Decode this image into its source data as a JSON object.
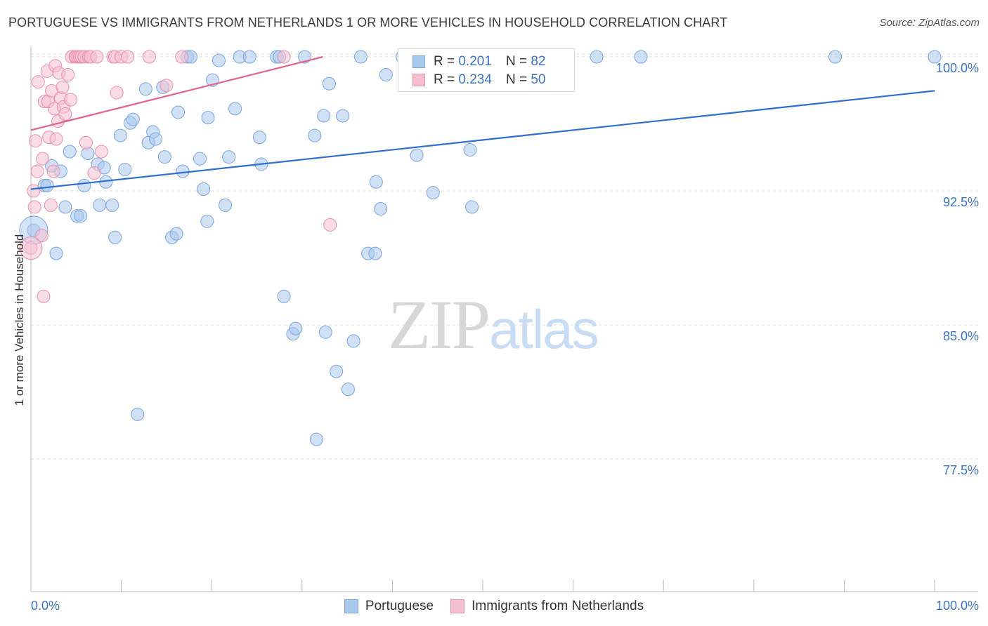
{
  "header": {
    "title": "PORTUGUESE VS IMMIGRANTS FROM NETHERLANDS 1 OR MORE VEHICLES IN HOUSEHOLD CORRELATION CHART",
    "source": "Source: ZipAtlas.com"
  },
  "watermark": {
    "zip": "ZIP",
    "atlas": "atlas"
  },
  "legend": {
    "rows": [
      {
        "r_label": "R =",
        "r_value": "0.201",
        "n_label": "N =",
        "n_value": "82"
      },
      {
        "r_label": "R =",
        "r_value": "0.234",
        "n_label": "N =",
        "n_value": "50"
      }
    ]
  },
  "bottom_legend": [
    "Portuguese",
    "Immigrants from Netherlands"
  ],
  "colors": {
    "blue_fill": "#a9c8ee",
    "blue_stroke": "#7aa4dc",
    "blue_line": "#2f6fcf",
    "pink_fill": "#f6bfd0",
    "pink_stroke": "#e98fab",
    "pink_line": "#e0648e",
    "grid": "#dddddd",
    "tick_text": "#3b73c9"
  },
  "chart_data": {
    "type": "scatter",
    "title": "PORTUGUESE VS IMMIGRANTS FROM NETHERLANDS 1 OR MORE VEHICLES IN HOUSEHOLD CORRELATION CHART",
    "xlabel": "",
    "ylabel": "1 or more Vehicles in Household",
    "xlim": [
      0,
      100
    ],
    "ylim": [
      70.0,
      101.5
    ],
    "x_tick_labels": [
      "0.0%",
      "100.0%"
    ],
    "y_ticks": [
      100.0,
      92.5,
      85.0,
      77.5
    ],
    "y_tick_labels": [
      "100.0%",
      "92.5%",
      "85.0%",
      "77.5%"
    ],
    "grid": true,
    "series": [
      {
        "name": "Portuguese",
        "color": "blue",
        "R": 0.201,
        "N": 82,
        "trend": {
          "x": [
            0,
            100
          ],
          "y": [
            92.6,
            98.1
          ]
        },
        "points": [
          [
            0.3,
            90.3
          ],
          [
            1.5,
            92.8
          ],
          [
            1.8,
            92.8
          ],
          [
            2.3,
            93.9
          ],
          [
            2.8,
            89.0
          ],
          [
            3.3,
            93.6
          ],
          [
            3.8,
            91.6
          ],
          [
            4.3,
            94.7
          ],
          [
            5.1,
            91.1
          ],
          [
            5.5,
            91.1
          ],
          [
            5.9,
            92.8
          ],
          [
            6.3,
            94.6
          ],
          [
            7.4,
            94.0
          ],
          [
            7.6,
            91.7
          ],
          [
            8.1,
            93.8
          ],
          [
            8.3,
            93.0
          ],
          [
            9.0,
            91.7
          ],
          [
            9.3,
            89.9
          ],
          [
            9.9,
            95.6
          ],
          [
            10.4,
            93.7
          ],
          [
            11.0,
            96.3
          ],
          [
            11.3,
            96.5
          ],
          [
            12.7,
            98.2
          ],
          [
            13.0,
            95.2
          ],
          [
            13.5,
            95.8
          ],
          [
            13.8,
            95.4
          ],
          [
            14.6,
            98.3
          ],
          [
            14.8,
            94.4
          ],
          [
            15.6,
            89.9
          ],
          [
            16.1,
            90.1
          ],
          [
            16.3,
            96.9
          ],
          [
            16.8,
            93.6
          ],
          [
            17.3,
            100.0
          ],
          [
            17.7,
            100.0
          ],
          [
            18.7,
            94.3
          ],
          [
            19.1,
            92.6
          ],
          [
            19.5,
            90.8
          ],
          [
            19.6,
            96.6
          ],
          [
            20.1,
            98.7
          ],
          [
            20.8,
            99.8
          ],
          [
            21.5,
            91.7
          ],
          [
            21.9,
            94.4
          ],
          [
            22.6,
            97.1
          ],
          [
            23.1,
            100.0
          ],
          [
            24.2,
            100.0
          ],
          [
            25.3,
            95.5
          ],
          [
            25.5,
            94.0
          ],
          [
            27.2,
            100.0
          ],
          [
            27.5,
            100.0
          ],
          [
            28.0,
            86.6
          ],
          [
            29.0,
            84.5
          ],
          [
            29.3,
            84.8
          ],
          [
            30.3,
            100.0
          ],
          [
            31.4,
            95.6
          ],
          [
            32.4,
            96.7
          ],
          [
            32.6,
            84.6
          ],
          [
            31.6,
            78.6
          ],
          [
            33.0,
            98.5
          ],
          [
            33.8,
            82.4
          ],
          [
            34.5,
            96.7
          ],
          [
            35.1,
            81.4
          ],
          [
            35.7,
            84.1
          ],
          [
            36.5,
            100.0
          ],
          [
            37.3,
            89.0
          ],
          [
            38.1,
            89.0
          ],
          [
            38.2,
            93.0
          ],
          [
            38.7,
            91.5
          ],
          [
            39.3,
            99.0
          ],
          [
            41.1,
            100.0
          ],
          [
            41.6,
            100.0
          ],
          [
            42.7,
            94.5
          ],
          [
            44.5,
            92.4
          ],
          [
            45.0,
            100.0
          ],
          [
            48.2,
            100.0
          ],
          [
            48.6,
            94.8
          ],
          [
            48.8,
            91.6
          ],
          [
            51.0,
            100.0
          ],
          [
            62.6,
            100.0
          ],
          [
            67.5,
            100.0
          ],
          [
            89.0,
            100.0
          ],
          [
            100.0,
            100.0
          ],
          [
            11.8,
            80.0
          ]
        ]
      },
      {
        "name": "Immigrants from Netherlands",
        "color": "pink",
        "R": 0.234,
        "N": 50,
        "trend": {
          "x": [
            0,
            32.3
          ],
          "y": [
            95.9,
            100.0
          ]
        },
        "points": [
          [
            0.0,
            89.3
          ],
          [
            0.3,
            92.5
          ],
          [
            0.4,
            91.6
          ],
          [
            0.5,
            95.3
          ],
          [
            0.7,
            93.6
          ],
          [
            0.8,
            98.6
          ],
          [
            1.2,
            90.0
          ],
          [
            1.3,
            94.3
          ],
          [
            1.4,
            86.6
          ],
          [
            1.5,
            97.5
          ],
          [
            1.8,
            99.2
          ],
          [
            1.9,
            97.5
          ],
          [
            2.0,
            95.5
          ],
          [
            2.2,
            91.7
          ],
          [
            2.3,
            98.1
          ],
          [
            2.5,
            93.6
          ],
          [
            2.6,
            97.1
          ],
          [
            2.7,
            99.5
          ],
          [
            2.8,
            95.4
          ],
          [
            3.0,
            96.4
          ],
          [
            3.1,
            99.1
          ],
          [
            3.3,
            97.7
          ],
          [
            3.5,
            98.3
          ],
          [
            3.6,
            97.2
          ],
          [
            3.8,
            96.8
          ],
          [
            4.1,
            99.0
          ],
          [
            4.4,
            97.6
          ],
          [
            4.5,
            100.0
          ],
          [
            4.9,
            100.0
          ],
          [
            5.0,
            100.0
          ],
          [
            5.2,
            100.0
          ],
          [
            5.4,
            100.0
          ],
          [
            5.6,
            100.0
          ],
          [
            5.9,
            100.0
          ],
          [
            6.1,
            95.2
          ],
          [
            6.4,
            100.0
          ],
          [
            6.6,
            100.0
          ],
          [
            7.0,
            93.5
          ],
          [
            7.3,
            100.0
          ],
          [
            7.8,
            94.7
          ],
          [
            9.1,
            100.0
          ],
          [
            9.3,
            100.0
          ],
          [
            9.5,
            98.0
          ],
          [
            10.0,
            100.0
          ],
          [
            10.7,
            100.0
          ],
          [
            13.1,
            100.0
          ],
          [
            15.0,
            98.4
          ],
          [
            16.7,
            100.0
          ],
          [
            28.0,
            100.0
          ],
          [
            33.1,
            90.6
          ]
        ]
      }
    ]
  }
}
